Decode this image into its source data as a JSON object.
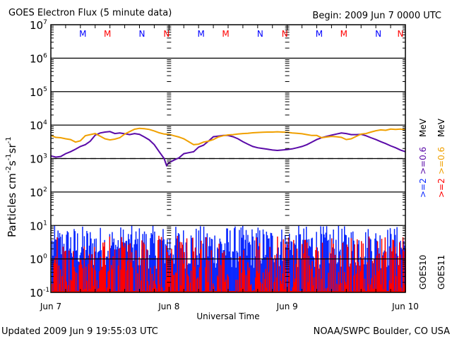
{
  "chart_data": {
    "type": "line",
    "title": "GOES Electron Flux (5 minute data)",
    "begin_label": "Begin: 2009 Jun 7 0000 UTC",
    "xlabel": "Universal Time",
    "ylabel": "Particles cm",
    "ylabel_parts": [
      "Particles cm",
      "-2",
      "s",
      "-1",
      "sr",
      "-1"
    ],
    "yscale": "log",
    "ylim_exp": [
      -1,
      7
    ],
    "ytick_exps": [
      "7",
      "6",
      "5",
      "4",
      "3",
      "2",
      "1",
      "0",
      "-1"
    ],
    "ytick_base": "10",
    "xlim_hours": [
      0,
      72
    ],
    "xticks": [
      {
        "hour": 0,
        "label": "Jun 7"
      },
      {
        "hour": 24,
        "label": "Jun 8"
      },
      {
        "hour": 48,
        "label": "Jun 9"
      },
      {
        "hour": 72,
        "label": "Jun 10"
      }
    ],
    "dashed_reference_level": 1000,
    "mn_markers": [
      {
        "hour": 6.5,
        "label": "M",
        "color": "#0000ff"
      },
      {
        "hour": 11.5,
        "label": "M",
        "color": "#ff0000"
      },
      {
        "hour": 18.5,
        "label": "N",
        "color": "#0000ff"
      },
      {
        "hour": 23.5,
        "label": "N",
        "color": "#ff0000"
      },
      {
        "hour": 30.5,
        "label": "M",
        "color": "#0000ff"
      },
      {
        "hour": 35.5,
        "label": "M",
        "color": "#ff0000"
      },
      {
        "hour": 42.5,
        "label": "N",
        "color": "#0000ff"
      },
      {
        "hour": 47.5,
        "label": "N",
        "color": "#ff0000"
      },
      {
        "hour": 54.5,
        "label": "M",
        "color": "#0000ff"
      },
      {
        "hour": 59.5,
        "label": "M",
        "color": "#ff0000"
      },
      {
        "hour": 66.5,
        "label": "N",
        "color": "#0000ff"
      },
      {
        "hour": 71.0,
        "label": "N",
        "color": "#ff0000"
      }
    ],
    "legend": {
      "placement": "right",
      "goes10": "GOES10",
      "goes11": "GOES11",
      "g10_2mev": ">=2",
      "g10_06mev": ">=0.6",
      "g11_2mev": ">=2",
      "g11_06mev": ">=0.6",
      "unit": "MeV"
    },
    "series": [
      {
        "name": "GOES10 >=0.6 MeV",
        "color": "#5a0aa8",
        "x_hours": [
          0,
          1,
          2,
          3,
          4,
          5,
          6,
          7,
          8,
          9,
          10,
          11,
          12,
          13,
          14,
          15,
          16,
          17,
          18,
          19,
          20,
          21,
          22,
          23,
          23.5,
          24,
          25,
          26,
          27,
          28,
          29,
          30,
          31,
          32,
          33,
          34,
          35,
          36,
          37,
          38,
          39,
          40,
          41,
          42,
          43,
          44,
          45,
          46,
          47,
          48,
          49,
          50,
          51,
          52,
          53,
          54,
          55,
          56,
          57,
          58,
          59,
          60,
          61,
          62,
          63,
          64,
          65,
          66,
          67,
          68,
          69,
          70,
          71,
          72
        ],
        "values": [
          1200,
          1100,
          1150,
          1400,
          1600,
          1900,
          2300,
          2600,
          3300,
          5000,
          5800,
          6200,
          6400,
          5600,
          5800,
          5500,
          5200,
          5600,
          5300,
          4400,
          3600,
          2600,
          1600,
          1000,
          620,
          750,
          900,
          1050,
          1400,
          1500,
          1600,
          2200,
          2500,
          3300,
          4500,
          4700,
          4900,
          4900,
          4500,
          3900,
          3200,
          2700,
          2300,
          2100,
          2000,
          1900,
          1800,
          1750,
          1800,
          1850,
          1950,
          2100,
          2300,
          2600,
          3100,
          3700,
          4200,
          4600,
          5000,
          5400,
          5800,
          5600,
          5200,
          5200,
          5300,
          4800,
          4200,
          3700,
          3200,
          2800,
          2400,
          2100,
          1800,
          1600
        ]
      },
      {
        "name": "GOES11 >=0.6 MeV",
        "color": "#f0a000",
        "x_hours": [
          0,
          1,
          2,
          3,
          4,
          5,
          6,
          7,
          8,
          9,
          10,
          11,
          12,
          13,
          14,
          15,
          16,
          17,
          18,
          19,
          20,
          21,
          22,
          23,
          24,
          25,
          26,
          27,
          28,
          29,
          30,
          31,
          32,
          33,
          34,
          35,
          36,
          37,
          38,
          39,
          40,
          41,
          42,
          43,
          44,
          45,
          46,
          47,
          48,
          49,
          50,
          51,
          52,
          53,
          54,
          55,
          56,
          57,
          58,
          59,
          60,
          61,
          62,
          63,
          64,
          65,
          66,
          67,
          68,
          69,
          70,
          71,
          72
        ],
        "values": [
          4900,
          4300,
          4200,
          3900,
          3700,
          3100,
          3400,
          4800,
          5200,
          5600,
          4700,
          3900,
          3600,
          3800,
          4200,
          5400,
          6400,
          7500,
          8000,
          7800,
          7400,
          6700,
          5900,
          5400,
          5300,
          4800,
          4400,
          3900,
          3200,
          2600,
          2700,
          3100,
          3300,
          3700,
          4400,
          4800,
          5100,
          5200,
          5400,
          5600,
          5700,
          5900,
          6000,
          6100,
          6200,
          6200,
          6300,
          6200,
          6100,
          5800,
          5700,
          5500,
          5200,
          4900,
          4900,
          4200,
          4400,
          4600,
          4500,
          4300,
          3700,
          3900,
          4600,
          5400,
          5600,
          6200,
          6800,
          7200,
          7000,
          7600,
          7400,
          7600,
          7200
        ]
      },
      {
        "name": "GOES10 >=2 MeV",
        "color": "#0a28ff",
        "style": "noisy-bars",
        "typical_range": [
          0.1,
          12
        ]
      },
      {
        "name": "GOES11 >=2 MeV",
        "color": "#ff0000",
        "style": "noisy-bars",
        "typical_range": [
          0.1,
          5
        ]
      }
    ]
  },
  "footer": {
    "updated": "Updated 2009 Jun  9 19:55:03 UTC",
    "credit": "NOAA/SWPC Boulder, CO USA"
  }
}
